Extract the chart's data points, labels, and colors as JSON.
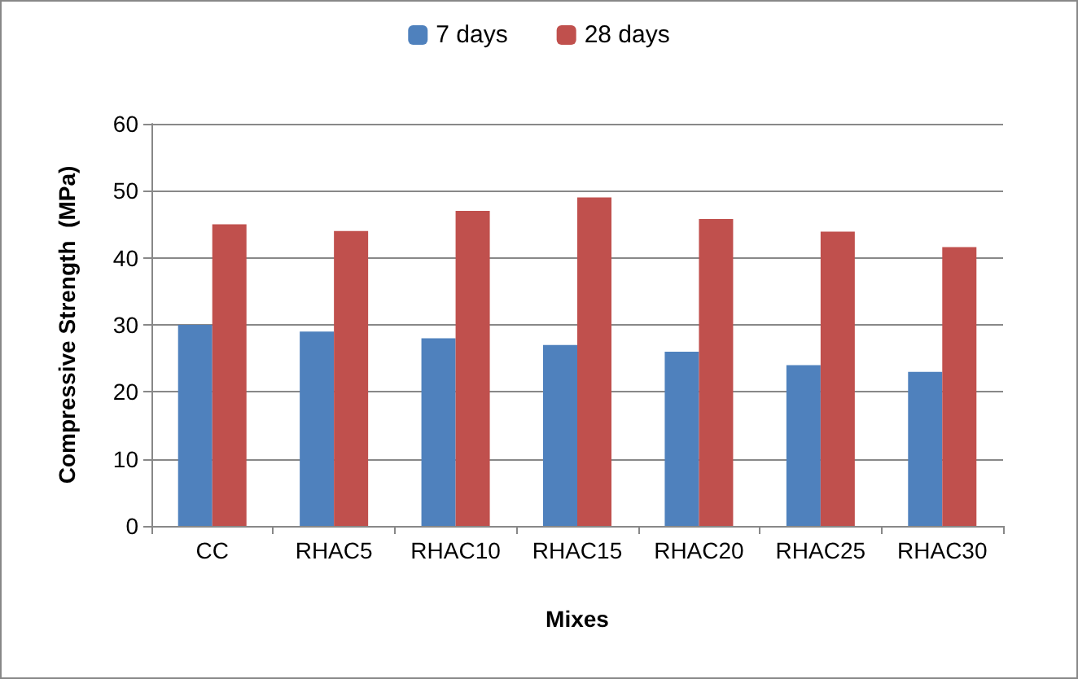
{
  "chart_data": {
    "type": "bar",
    "xlabel": "Mixes",
    "ylabel": "Compressive Strength  (MPa)",
    "categories": [
      "CC",
      "RHAC5",
      "RHAC10",
      "RHAC15",
      "RHAC20",
      "RHAC25",
      "RHAC30"
    ],
    "series": [
      {
        "name": "7 days",
        "color": "#4f81bd",
        "values": [
          30,
          29,
          28,
          27,
          26,
          24,
          23
        ]
      },
      {
        "name": "28 days",
        "color": "#c0504d",
        "values": [
          45,
          44,
          47,
          49,
          45.8,
          43.9,
          41.6
        ]
      }
    ],
    "ylim": [
      0,
      60
    ],
    "yticks": [
      0,
      10,
      20,
      30,
      40,
      50,
      60
    ],
    "grid": "y",
    "legend": "top"
  }
}
